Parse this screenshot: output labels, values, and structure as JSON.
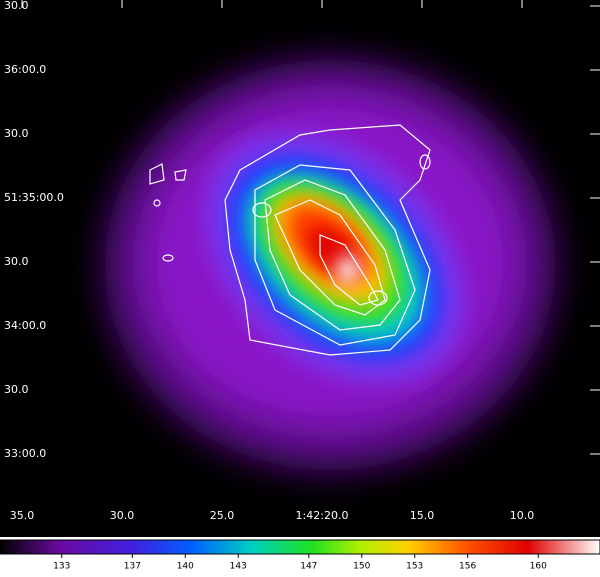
{
  "image": {
    "y_labels": [
      "30.0",
      "36:00.0",
      "30.0",
      "51:35:00.0",
      "30.0",
      "34:00.0",
      "30.0",
      "33:00.0"
    ],
    "x_labels": [
      "35.0",
      "30.0",
      "25.0",
      "1:42:20.0",
      "15.0",
      "10.0"
    ],
    "colorbar": {
      "clim": [
        129.5,
        163.5
      ],
      "ticks": [
        133,
        137,
        140,
        143,
        147,
        150,
        153,
        156,
        160
      ]
    }
  }
}
